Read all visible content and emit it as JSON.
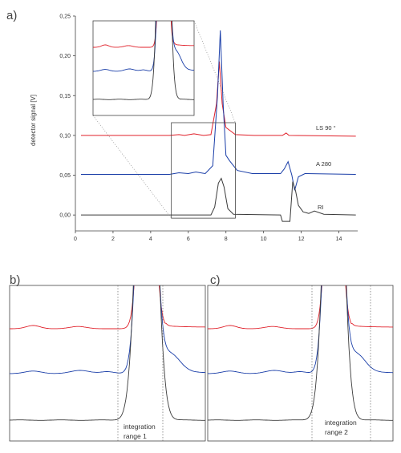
{
  "panels": {
    "a": "a)",
    "b": "b)",
    "c": "c)"
  },
  "chart_data": {
    "type": "line",
    "ylabel": "detector signal [V]",
    "xlim": [
      0,
      15
    ],
    "ylim": [
      -0.02,
      0.25
    ],
    "x_ticks": [
      "0",
      "2",
      "4",
      "6",
      "8",
      "10",
      "12",
      "14"
    ],
    "y_ticks": [
      "0,00",
      "0,05",
      "0,10",
      "0,15",
      "0,20",
      "0,25"
    ],
    "series": [
      {
        "name": "LS 90 °",
        "color": "#e0202a",
        "points": [
          [
            0.3,
            0.1
          ],
          [
            5.0,
            0.1
          ],
          [
            5.5,
            0.101
          ],
          [
            5.8,
            0.1
          ],
          [
            6.3,
            0.102
          ],
          [
            6.8,
            0.1
          ],
          [
            7.2,
            0.101
          ],
          [
            7.5,
            0.14
          ],
          [
            7.65,
            0.193
          ],
          [
            7.8,
            0.14
          ],
          [
            8.0,
            0.11
          ],
          [
            8.5,
            0.101
          ],
          [
            9.5,
            0.1
          ],
          [
            11.0,
            0.1
          ],
          [
            11.2,
            0.103
          ],
          [
            11.35,
            0.1
          ],
          [
            14.9,
            0.099
          ]
        ]
      },
      {
        "name": "A 280",
        "color": "#1a3ea8",
        "points": [
          [
            0.3,
            0.051
          ],
          [
            5.0,
            0.051
          ],
          [
            5.5,
            0.053
          ],
          [
            6.0,
            0.052
          ],
          [
            6.4,
            0.054
          ],
          [
            6.9,
            0.052
          ],
          [
            7.3,
            0.062
          ],
          [
            7.55,
            0.15
          ],
          [
            7.7,
            0.232
          ],
          [
            7.85,
            0.14
          ],
          [
            8.0,
            0.075
          ],
          [
            8.2,
            0.068
          ],
          [
            8.6,
            0.056
          ],
          [
            9.4,
            0.052
          ],
          [
            10.9,
            0.052
          ],
          [
            11.1,
            0.058
          ],
          [
            11.3,
            0.067
          ],
          [
            11.5,
            0.05
          ],
          [
            11.65,
            0.031
          ],
          [
            11.85,
            0.048
          ],
          [
            12.2,
            0.052
          ],
          [
            14.9,
            0.051
          ]
        ]
      },
      {
        "name": "RI",
        "color": "#3a3a3a",
        "points": [
          [
            0.3,
            0.0
          ],
          [
            7.2,
            0.0
          ],
          [
            7.4,
            0.01
          ],
          [
            7.6,
            0.04
          ],
          [
            7.75,
            0.046
          ],
          [
            7.9,
            0.035
          ],
          [
            8.1,
            0.008
          ],
          [
            8.4,
            0.001
          ],
          [
            10.9,
            0.0
          ],
          [
            11.0,
            -0.008
          ],
          [
            11.4,
            -0.008
          ],
          [
            11.55,
            0.042
          ],
          [
            11.7,
            0.03
          ],
          [
            11.85,
            0.012
          ],
          [
            12.1,
            0.004
          ],
          [
            12.4,
            0.002
          ],
          [
            12.7,
            0.005
          ],
          [
            13.2,
            0.001
          ],
          [
            14.9,
            0.0
          ]
        ]
      }
    ],
    "zoom_box": {
      "x": [
        5.1,
        8.5
      ],
      "y": [
        -0.004,
        0.116
      ]
    }
  },
  "annotations": {
    "range1": [
      "integration",
      "range 1"
    ],
    "range2": [
      "integration",
      "range 2"
    ]
  }
}
